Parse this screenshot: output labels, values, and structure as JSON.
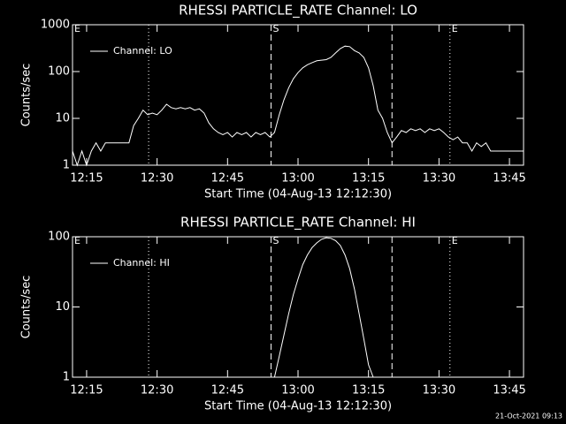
{
  "chart_data": [
    {
      "type": "line",
      "title": "RHESSI PARTICLE_RATE Channel: LO",
      "xlabel": "Start Time (04-Aug-13 12:12:30)",
      "ylabel": "Counts/sec",
      "log_y": true,
      "color": "#ffffff",
      "xlim": [
        "12:12",
        "13:48"
      ],
      "xticks": [
        "12:15",
        "12:30",
        "12:45",
        "13:00",
        "13:15",
        "13:30",
        "13:45"
      ],
      "ylim": [
        1,
        1000
      ],
      "yticks": [
        1,
        10,
        100,
        1000
      ],
      "legend": "upper left",
      "vlines": [
        {
          "x": "12:28:12",
          "style": "dotted"
        },
        {
          "x": "12:54:15",
          "style": "dashed"
        },
        {
          "x": "13:20",
          "style": "dashed"
        },
        {
          "x": "13:32:20",
          "style": "dotted"
        },
        {
          "x": "13:48",
          "style": "dotted"
        }
      ],
      "annotations": [
        {
          "x": "12:12",
          "text": "E"
        },
        {
          "x": "12:54:15",
          "text": "S"
        },
        {
          "x": "13:32:20",
          "text": "E"
        }
      ],
      "x": [
        "12:12",
        "12:13",
        "12:14",
        "12:15",
        "12:16",
        "12:17",
        "12:18",
        "12:19",
        "12:20",
        "12:21",
        "12:22",
        "12:23",
        "12:24",
        "12:25",
        "12:26",
        "12:27",
        "12:28",
        "12:29",
        "12:30",
        "12:31",
        "12:32",
        "12:33",
        "12:34",
        "12:35",
        "12:36",
        "12:37",
        "12:38",
        "12:39",
        "12:40",
        "12:41",
        "12:42",
        "12:43",
        "12:44",
        "12:45",
        "12:46",
        "12:47",
        "12:48",
        "12:49",
        "12:50",
        "12:51",
        "12:52",
        "12:53",
        "12:54",
        "12:55",
        "12:56",
        "12:57",
        "12:58",
        "12:59",
        "13:00",
        "13:01",
        "13:02",
        "13:03",
        "13:04",
        "13:05",
        "13:06",
        "13:07",
        "13:08",
        "13:09",
        "13:10",
        "13:11",
        "13:12",
        "13:13",
        "13:14",
        "13:15",
        "13:16",
        "13:17",
        "13:18",
        "13:19",
        "13:20",
        "13:21",
        "13:22",
        "13:23",
        "13:24",
        "13:25",
        "13:26",
        "13:27",
        "13:28",
        "13:29",
        "13:30",
        "13:31",
        "13:32",
        "13:33",
        "13:34",
        "13:35",
        "13:36",
        "13:37",
        "13:38",
        "13:39",
        "13:40",
        "13:41",
        "13:42",
        "13:43",
        "13:44",
        "13:45",
        "13:46",
        "13:47",
        "13:48"
      ],
      "series": [
        {
          "name": "Channel: LO",
          "color": "#ffffff",
          "values": [
            2,
            1,
            2,
            1,
            2,
            3,
            2,
            3,
            3,
            3,
            3,
            3,
            3,
            7,
            10,
            15,
            12,
            13,
            12,
            15,
            20,
            17,
            16,
            17,
            16,
            17,
            15,
            16,
            13,
            8,
            6,
            5,
            4.5,
            5,
            4,
            5,
            4.5,
            5,
            4,
            5,
            4.5,
            5,
            4,
            5,
            12,
            25,
            45,
            70,
            95,
            120,
            140,
            155,
            170,
            175,
            180,
            200,
            250,
            310,
            350,
            340,
            280,
            250,
            200,
            120,
            50,
            15,
            10,
            5,
            3,
            4,
            5.5,
            5,
            6,
            5.5,
            6,
            5,
            6,
            5.5,
            6,
            5,
            4,
            3.5,
            4,
            3,
            3,
            2,
            3,
            2.5,
            3,
            2,
            2,
            2,
            2,
            2,
            2,
            2,
            2
          ]
        }
      ]
    },
    {
      "type": "line",
      "title": "RHESSI PARTICLE_RATE Channel: HI",
      "xlabel": "Start Time (04-Aug-13 12:12:30)",
      "ylabel": "Counts/sec",
      "log_y": true,
      "color": "#ffffff",
      "xlim": [
        "12:12",
        "13:48"
      ],
      "xticks": [
        "12:15",
        "12:30",
        "12:45",
        "13:00",
        "13:15",
        "13:30",
        "13:45"
      ],
      "ylim": [
        1,
        100
      ],
      "yticks": [
        1,
        10,
        100
      ],
      "legend": "upper left",
      "vlines": [
        {
          "x": "12:28:12",
          "style": "dotted"
        },
        {
          "x": "12:54:15",
          "style": "dashed"
        },
        {
          "x": "13:20",
          "style": "dashed"
        },
        {
          "x": "13:32:20",
          "style": "dotted"
        },
        {
          "x": "13:48",
          "style": "dotted"
        }
      ],
      "annotations": [
        {
          "x": "12:12",
          "text": "E"
        },
        {
          "x": "12:54:15",
          "text": "S"
        },
        {
          "x": "13:32:20",
          "text": "E"
        }
      ],
      "x": [
        "12:55",
        "12:56",
        "12:57",
        "12:58",
        "12:59",
        "13:00",
        "13:01",
        "13:02",
        "13:03",
        "13:04",
        "13:05",
        "13:06",
        "13:07",
        "13:08",
        "13:09",
        "13:10",
        "13:11",
        "13:12",
        "13:13",
        "13:14",
        "13:15",
        "13:16"
      ],
      "series": [
        {
          "name": "Channel: HI",
          "color": "#ffffff",
          "values": [
            1,
            2,
            4,
            8,
            15,
            25,
            40,
            55,
            70,
            82,
            92,
            97,
            95,
            88,
            75,
            55,
            35,
            18,
            8,
            3.5,
            1.5,
            1
          ]
        }
      ]
    }
  ],
  "footer": "21-Oct-2021 09:13"
}
